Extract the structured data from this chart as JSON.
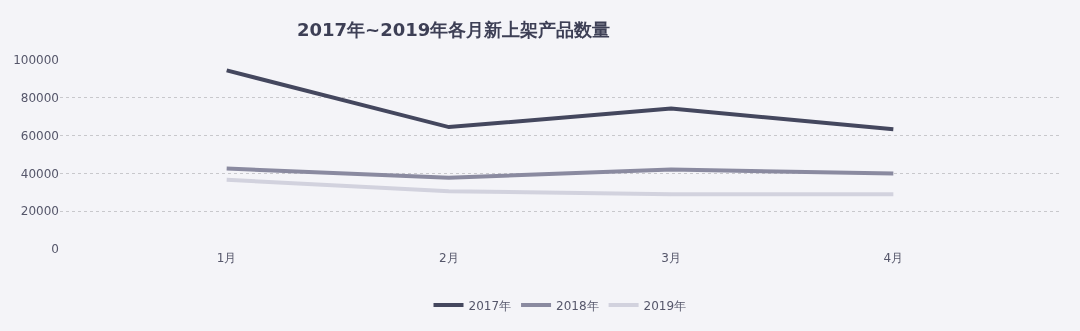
{
  "chart_data": {
    "type": "line",
    "title": "2017年~2019年各月新上架产品数量",
    "categories": [
      "1月",
      "2月",
      "3月",
      "4月"
    ],
    "series": [
      {
        "name": "2017年",
        "color": "#44475e",
        "values": [
          94500,
          64500,
          74300,
          63400
        ]
      },
      {
        "name": "2018年",
        "color": "#8a8aa0",
        "values": [
          42600,
          37700,
          42100,
          39900
        ]
      },
      {
        "name": "2019年",
        "color": "#d2d2de",
        "values": [
          36600,
          30600,
          29000,
          29000
        ]
      }
    ],
    "ylim": [
      0,
      100000
    ],
    "yticks": [
      0,
      20000,
      40000,
      60000,
      80000,
      100000
    ],
    "grid": "y",
    "legend": "bottom",
    "marker": "none",
    "line_style": "solid"
  }
}
